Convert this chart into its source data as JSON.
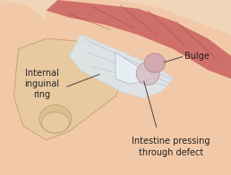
{
  "bg_color": "#f0d5b8",
  "labels": {
    "internal_inguinal_ring": "Internal\ninguinal\nring",
    "intestine_pressing": "Intestine pressing\nthrough defect",
    "bulge": "Bulge"
  },
  "muscle_color": "#c96060",
  "bone_color": "#e8c9a0",
  "fascia_color": "#dce8f0",
  "fascia_color2": "#c8dde8",
  "bulge_color": "#d4a8b0",
  "skin_color": "#f2c9a8",
  "text_color": "#222222",
  "line_color": "#444444",
  "font_size": 7
}
